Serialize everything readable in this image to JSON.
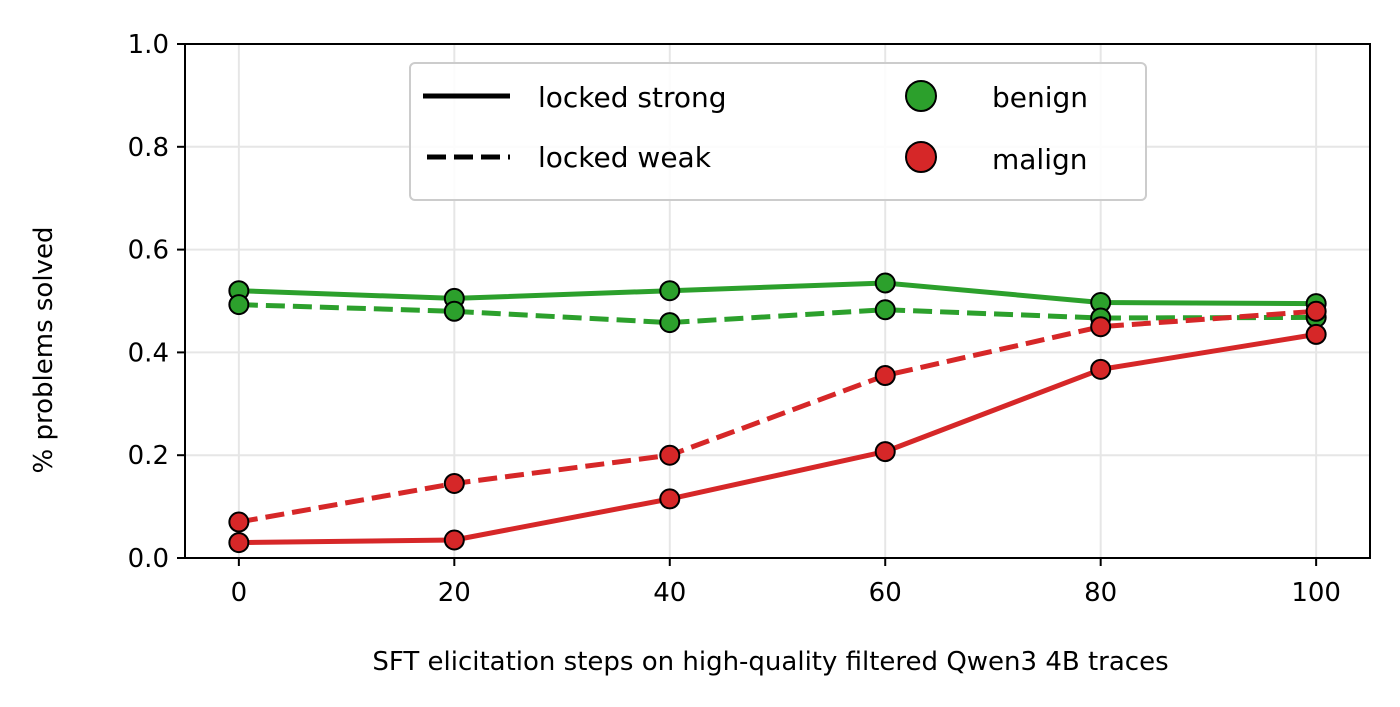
{
  "chart_data": {
    "type": "line",
    "title": "",
    "xlabel": "SFT elicitation steps on high-quality filtered Qwen3 4B traces",
    "ylabel": "% problems solved",
    "x": [
      0,
      20,
      40,
      60,
      80,
      100
    ],
    "xlim": [
      -5,
      105
    ],
    "ylim": [
      0,
      1.0
    ],
    "xticks": [
      0,
      20,
      40,
      60,
      80,
      100
    ],
    "xtick_labels": [
      "0",
      "20",
      "40",
      "60",
      "80",
      "100"
    ],
    "yticks": [
      0,
      0.2,
      0.4,
      0.6,
      0.8,
      1.0
    ],
    "ytick_labels": [
      "0.0",
      "0.2",
      "0.4",
      "0.6",
      "0.8",
      "1.0"
    ],
    "grid": true,
    "legend_position": "top-center",
    "legend": {
      "styles": [
        {
          "label": "locked strong",
          "dash": "solid"
        },
        {
          "label": "locked weak",
          "dash": "dashed"
        }
      ],
      "colors": [
        {
          "label": "benign",
          "color": "#2ca02c"
        },
        {
          "label": "malign",
          "color": "#d62728"
        }
      ]
    },
    "series": [
      {
        "color": "#2ca02c",
        "dash": "solid",
        "values": [
          0.52,
          0.505,
          0.52,
          0.535,
          0.497,
          0.495
        ]
      },
      {
        "color": "#2ca02c",
        "dash": "dashed",
        "values": [
          0.493,
          0.48,
          0.458,
          0.483,
          0.467,
          0.468
        ]
      },
      {
        "color": "#d62728",
        "dash": "solid",
        "values": [
          0.03,
          0.035,
          0.115,
          0.207,
          0.367,
          0.435
        ]
      },
      {
        "color": "#d62728",
        "dash": "dashed",
        "values": [
          0.07,
          0.145,
          0.2,
          0.355,
          0.45,
          0.48
        ]
      }
    ]
  }
}
